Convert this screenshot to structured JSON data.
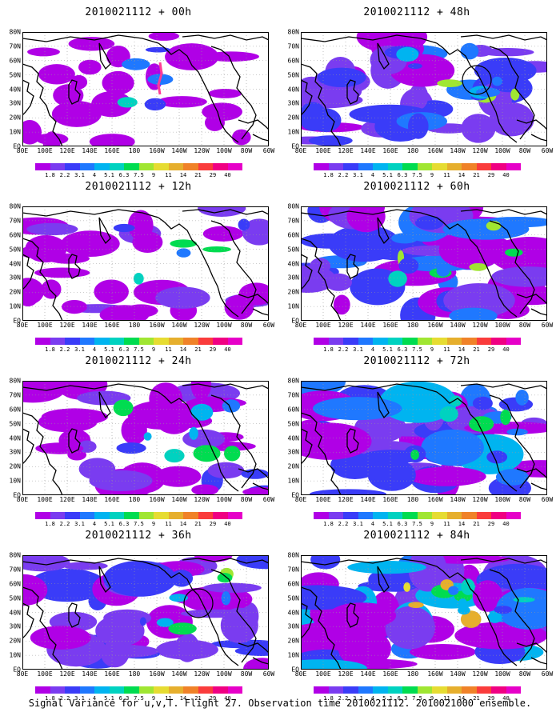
{
  "panels": [
    {
      "title": "2010021112 + 00h",
      "level": 0.15
    },
    {
      "title": "2010021112 + 48h",
      "level": 0.55
    },
    {
      "title": "2010021112 + 12h",
      "level": 0.25
    },
    {
      "title": "2010021112 + 60h",
      "level": 0.62
    },
    {
      "title": "2010021112 + 24h",
      "level": 0.38
    },
    {
      "title": "2010021112 + 72h",
      "level": 0.72
    },
    {
      "title": "2010021112 + 36h",
      "level": 0.48
    },
    {
      "title": "2010021112 + 84h",
      "level": 0.82
    }
  ],
  "lon_labels": [
    "80E",
    "100E",
    "120E",
    "140E",
    "160E",
    "180",
    "160W",
    "140W",
    "120W",
    "100W",
    "80W",
    "60W"
  ],
  "lat_labels": [
    "80N",
    "70N",
    "60N",
    "50N",
    "40N",
    "30N",
    "20N",
    "10N",
    "EQ"
  ],
  "colorbar": {
    "levels": [
      "1.8",
      "2.2",
      "3.1",
      "4",
      "5.1",
      "6.3",
      "7.5",
      "9",
      "11",
      "14",
      "21",
      "29",
      "40"
    ],
    "colors": [
      "#b000e6",
      "#7a3cf0",
      "#3a3cf8",
      "#1f78ff",
      "#00b4f0",
      "#00d2c0",
      "#00dc50",
      "#a0e632",
      "#e6dc32",
      "#e6af2d",
      "#f08228",
      "#fa3c3c",
      "#f00082",
      "#e600c8"
    ]
  },
  "caption": "Signal Variance for u,v,T. Flight 27. Observation time 2010021112. 2010021000 ensemble."
}
